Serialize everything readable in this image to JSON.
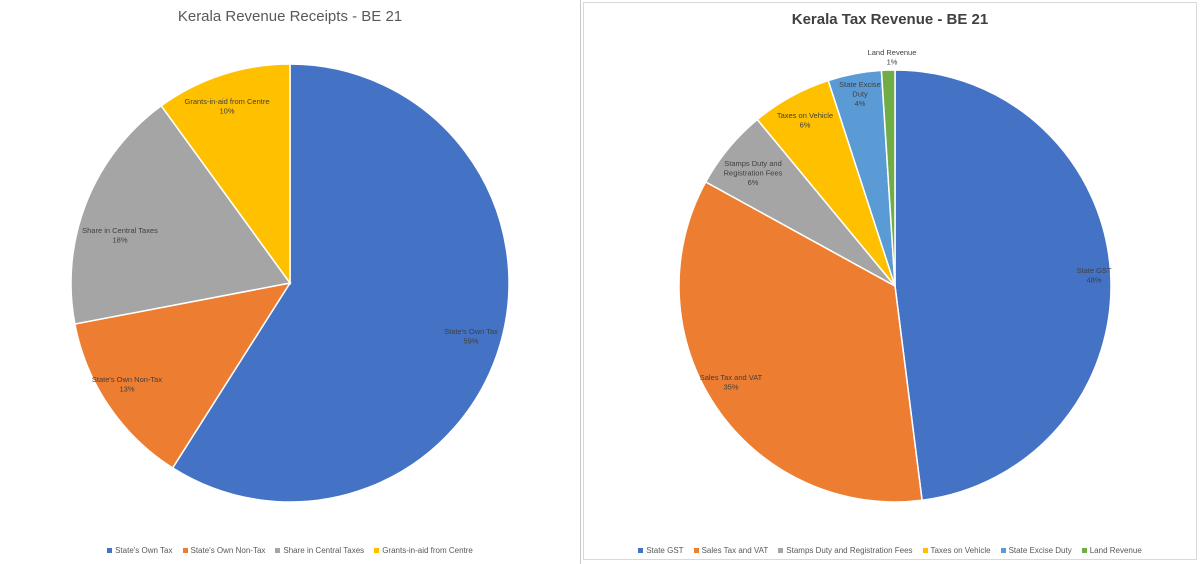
{
  "chart_data": [
    {
      "type": "pie",
      "title": "Kerala Revenue Receipts - BE 21",
      "series": [
        {
          "labels": [
            "State's Own Tax",
            "State's Own Non-Tax",
            "Share in Central Taxes",
            "Grants-in-aid from Centre"
          ],
          "values": [
            59,
            13,
            18,
            10
          ],
          "display": [
            "59%",
            "13%",
            "18%",
            "10%"
          ]
        }
      ],
      "colors": [
        "#4472c4",
        "#ed7d31",
        "#a5a5a5",
        "#ffc000"
      ],
      "legend": "bottom",
      "legend_items": [
        "State's Own Tax",
        "State's Own Non-Tax",
        "Share in Central Taxes",
        "Grants-in-aid from Centre"
      ]
    },
    {
      "type": "pie",
      "title": "Kerala Tax Revenue - BE 21",
      "series": [
        {
          "labels": [
            "State GST",
            "Sales Tax and VAT",
            "Stamps Duty and Registration Fees",
            "Taxes on Vehicle",
            "State Excise Duty",
            "Land Revenue"
          ],
          "values": [
            48,
            35,
            6,
            6,
            4,
            1
          ],
          "display": [
            "48%",
            "35%",
            "6%",
            "6%",
            "4%",
            "1%"
          ]
        }
      ],
      "colors": [
        "#4472c4",
        "#ed7d31",
        "#a5a5a5",
        "#ffc000",
        "#5b9bd5",
        "#70ad47"
      ],
      "legend": "bottom",
      "legend_items": [
        "State GST",
        "Sales Tax and VAT",
        "Stamps Duty and Registration Fees",
        "Taxes on Vehicle",
        "State Excise Duty",
        "Land Revenue"
      ]
    }
  ]
}
